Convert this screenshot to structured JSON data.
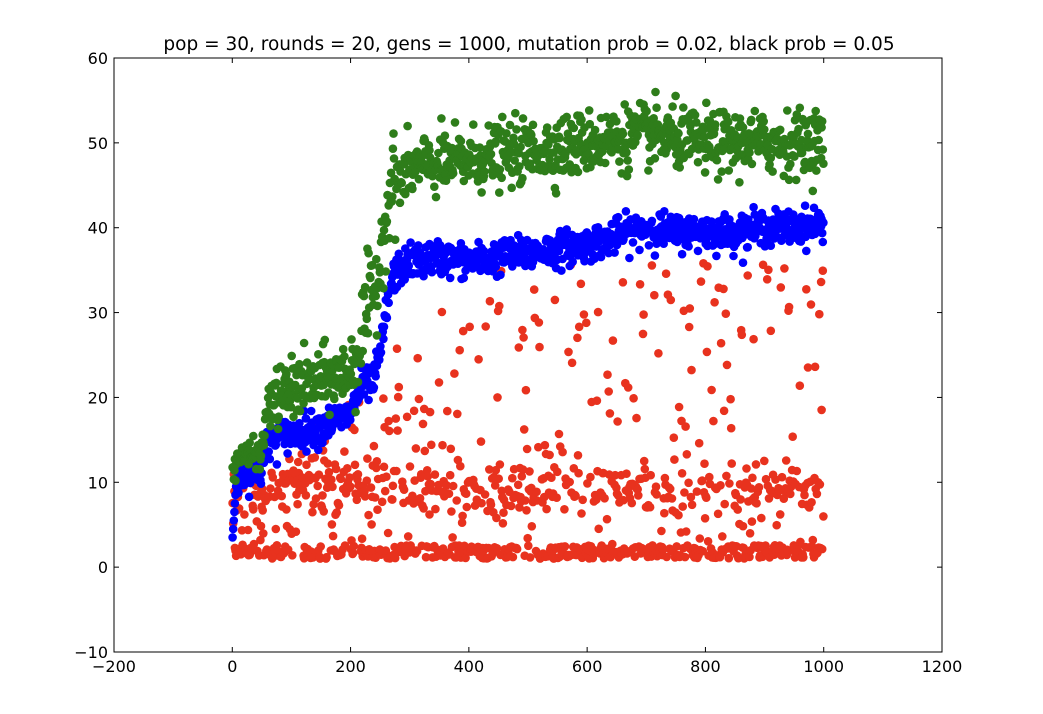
{
  "chart_data": {
    "type": "scatter",
    "title": "pop = 30, rounds = 20, gens = 1000, mutation prob = 0.02, black prob = 0.05",
    "xlabel": "",
    "ylabel": "",
    "xlim": [
      -200,
      1200
    ],
    "ylim": [
      -10,
      60
    ],
    "x_ticks": [
      -200,
      0,
      200,
      400,
      600,
      800,
      1000,
      1200
    ],
    "y_ticks": [
      -10,
      0,
      10,
      20,
      30,
      40,
      50,
      60
    ],
    "x_tick_labels": [
      "−200",
      "0",
      "200",
      "400",
      "600",
      "800",
      "1000",
      "1200"
    ],
    "y_tick_labels": [
      "−10",
      "0",
      "10",
      "20",
      "30",
      "40",
      "50",
      "60"
    ],
    "grid": false,
    "legend": "none",
    "colors": {
      "green": "#2e7d1a",
      "blue": "#0000ff",
      "red": "#e8321e"
    },
    "series": [
      {
        "color": "#2e7d1a",
        "approx_profile_x": [
          0,
          10,
          20,
          50,
          60,
          90,
          120,
          150,
          180,
          200,
          215,
          225,
          240,
          250,
          260,
          270,
          280,
          300,
          350,
          400,
          450,
          500,
          550,
          600,
          650,
          700,
          750,
          800,
          850,
          900,
          950,
          1000
        ],
        "approx_profile_y": [
          11,
          13,
          13,
          13.5,
          19,
          20.5,
          21.5,
          22,
          22.5,
          23,
          26,
          30,
          32,
          36,
          42,
          45,
          45.5,
          47,
          47.5,
          48,
          48.5,
          49,
          49.5,
          50,
          50.5,
          51,
          50.5,
          50,
          50,
          50,
          50,
          50.5
        ],
        "approx_spread": 1.8
      },
      {
        "color": "#0000ff",
        "approx_profile_x": [
          0,
          10,
          20,
          50,
          60,
          90,
          120,
          150,
          180,
          200,
          215,
          240,
          250,
          260,
          270,
          280,
          300,
          350,
          400,
          450,
          500,
          550,
          600,
          650,
          700,
          750,
          800,
          850,
          900,
          950,
          1000
        ],
        "approx_profile_y": [
          5,
          10,
          11,
          11.5,
          14.5,
          15.5,
          16,
          16.5,
          17.5,
          18,
          21,
          22,
          25,
          30,
          34,
          35,
          36,
          36.5,
          36,
          36.5,
          37,
          37.5,
          38,
          39,
          40,
          39.5,
          39.5,
          39.5,
          40,
          40,
          40.5
        ],
        "approx_spread": 1.0
      },
      {
        "color": "#e8321e",
        "x_range": [
          0,
          1000
        ],
        "approx_bands_y": [
          1.5,
          9
        ],
        "approx_max_y": 35,
        "approx_points": 1000
      }
    ]
  }
}
